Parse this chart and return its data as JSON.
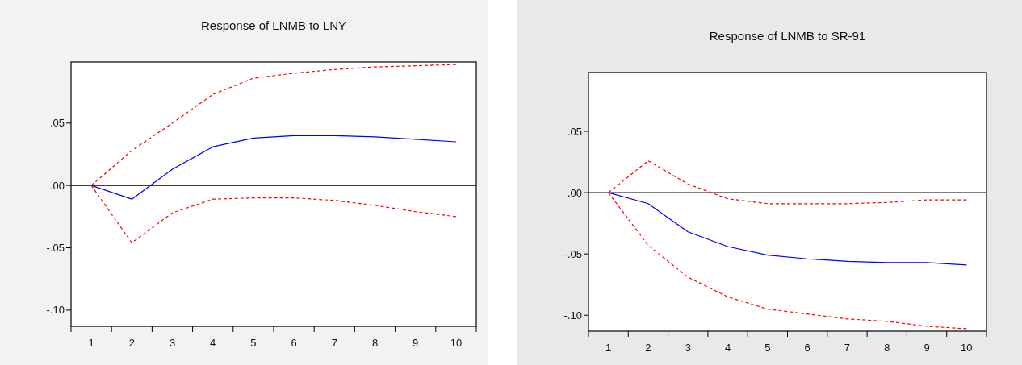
{
  "chart_data": [
    {
      "type": "line",
      "title": "Response of LNMB to LNY",
      "categories": [
        "1",
        "2",
        "3",
        "4",
        "5",
        "6",
        "7",
        "8",
        "9",
        "10"
      ],
      "ylim": [
        -0.113,
        0.099
      ],
      "yticks": [
        {
          "value": 0.05,
          "label": ".05"
        },
        {
          "value": 0,
          "label": ".00"
        },
        {
          "value": -0.05,
          "label": "-.05"
        },
        {
          "value": -0.1,
          "label": "-.10"
        }
      ],
      "grid": false,
      "marker": "none",
      "ref_lines": [
        {
          "axis": "y",
          "value": 0,
          "color": "#000000"
        }
      ],
      "series": [
        {
          "color": "#0000ff",
          "line_style": "solid",
          "values": [
            0,
            -0.011,
            0.013,
            0.031,
            0.038,
            0.04,
            0.04,
            0.039,
            0.037,
            0.035
          ]
        },
        {
          "color": "#ff0000",
          "line_style": "dashed",
          "values": [
            0,
            0.028,
            0.05,
            0.073,
            0.086,
            0.09,
            0.093,
            0.095,
            0.096,
            0.097
          ]
        },
        {
          "color": "#ff0000",
          "line_style": "dashed",
          "values": [
            0,
            -0.046,
            -0.022,
            -0.011,
            -0.01,
            -0.01,
            -0.012,
            -0.016,
            -0.021,
            -0.025
          ]
        }
      ]
    },
    {
      "type": "line",
      "title": "Response of LNMB to SR-91",
      "categories": [
        "1",
        "2",
        "3",
        "4",
        "5",
        "6",
        "7",
        "8",
        "9",
        "10"
      ],
      "ylim": [
        -0.113,
        0.098
      ],
      "yticks": [
        {
          "value": 0.05,
          "label": ".05"
        },
        {
          "value": 0,
          "label": ".00"
        },
        {
          "value": -0.05,
          "label": "-.05"
        },
        {
          "value": -0.1,
          "label": "-.10"
        }
      ],
      "grid": false,
      "marker": "none",
      "ref_lines": [
        {
          "axis": "y",
          "value": 0,
          "color": "#000000"
        }
      ],
      "series": [
        {
          "color": "#0000ff",
          "line_style": "solid",
          "values": [
            0,
            -0.009,
            -0.032,
            -0.044,
            -0.051,
            -0.054,
            -0.056,
            -0.057,
            -0.057,
            -0.059
          ]
        },
        {
          "color": "#ff0000",
          "line_style": "dashed",
          "values": [
            0,
            0.026,
            0.007,
            -0.005,
            -0.009,
            -0.009,
            -0.009,
            -0.008,
            -0.006,
            -0.006
          ]
        },
        {
          "color": "#ff0000",
          "line_style": "dashed",
          "values": [
            0,
            -0.043,
            -0.069,
            -0.085,
            -0.095,
            -0.099,
            -0.103,
            -0.105,
            -0.109,
            -0.111
          ]
        }
      ]
    }
  ]
}
